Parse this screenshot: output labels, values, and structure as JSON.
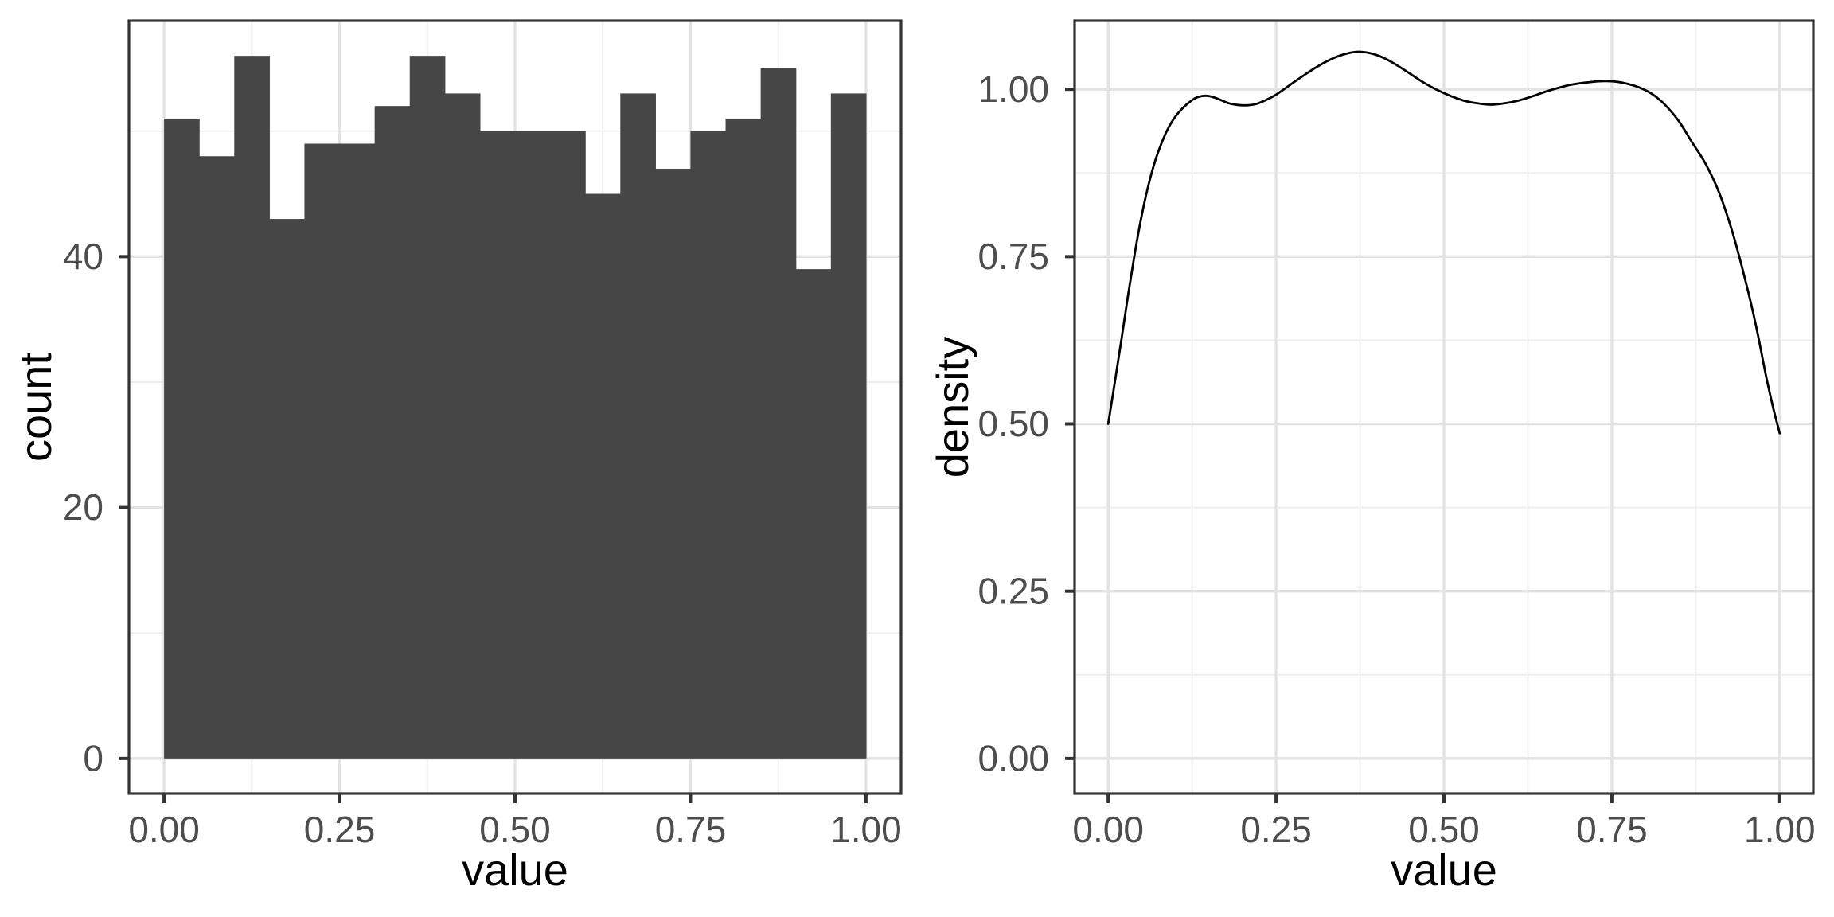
{
  "figure": {
    "background": "#FFFFFF",
    "panel_background": "#FFFFFF",
    "panel_border_color": "#333333",
    "grid_major_color": "#E3E3E3",
    "grid_minor_color": "#EFEFEF",
    "tick_mark_color": "#333333",
    "tick_label_color": "#4D4D4D",
    "axis_title_color": "#000000"
  },
  "chart_data": [
    {
      "type": "bar",
      "subtype": "histogram",
      "title": "",
      "xlabel": "value",
      "ylabel": "count",
      "bar_color": "#464646",
      "bin_start": 0.0,
      "bin_width": 0.05,
      "bin_edges": [
        0.0,
        0.05,
        0.1,
        0.15,
        0.2,
        0.25,
        0.3,
        0.35,
        0.4,
        0.45,
        0.5,
        0.55,
        0.6,
        0.65,
        0.7,
        0.75,
        0.8,
        0.85,
        0.9,
        0.95,
        1.0
      ],
      "values": [
        51,
        48,
        56,
        43,
        49,
        49,
        52,
        56,
        53,
        50,
        50,
        50,
        45,
        53,
        47,
        50,
        51,
        55,
        39,
        53
      ],
      "x_tick_values": [
        0,
        0.25,
        0.5,
        0.75,
        1
      ],
      "x_tick_labels": [
        "0.00",
        "0.25",
        "0.50",
        "0.75",
        "1.00"
      ],
      "x_minor_values": [
        0.125,
        0.375,
        0.625,
        0.875
      ],
      "y_tick_values": [
        0,
        20,
        40
      ],
      "y_tick_labels": [
        "0",
        "20",
        "40"
      ],
      "y_minor_values": [
        10,
        30,
        50
      ],
      "xlim": [
        -0.05,
        1.05
      ],
      "ylim": [
        -2.8,
        58.8
      ],
      "grid": true,
      "legend": "none"
    },
    {
      "type": "line",
      "subtype": "density",
      "title": "",
      "xlabel": "value",
      "ylabel": "density",
      "line_color": "#000000",
      "points": [
        [
          0.0,
          0.5
        ],
        [
          0.01,
          0.563
        ],
        [
          0.02,
          0.628
        ],
        [
          0.03,
          0.695
        ],
        [
          0.04,
          0.757
        ],
        [
          0.05,
          0.812
        ],
        [
          0.06,
          0.857
        ],
        [
          0.07,
          0.893
        ],
        [
          0.08,
          0.921
        ],
        [
          0.09,
          0.943
        ],
        [
          0.1,
          0.959
        ],
        [
          0.11,
          0.971
        ],
        [
          0.12,
          0.98
        ],
        [
          0.13,
          0.987
        ],
        [
          0.14,
          0.99
        ],
        [
          0.15,
          0.99
        ],
        [
          0.16,
          0.987
        ],
        [
          0.17,
          0.983
        ],
        [
          0.18,
          0.979
        ],
        [
          0.19,
          0.977
        ],
        [
          0.205,
          0.976
        ],
        [
          0.22,
          0.978
        ],
        [
          0.235,
          0.984
        ],
        [
          0.25,
          0.992
        ],
        [
          0.27,
          1.006
        ],
        [
          0.29,
          1.02
        ],
        [
          0.31,
          1.033
        ],
        [
          0.33,
          1.044
        ],
        [
          0.35,
          1.052
        ],
        [
          0.37,
          1.056
        ],
        [
          0.39,
          1.054
        ],
        [
          0.41,
          1.047
        ],
        [
          0.43,
          1.036
        ],
        [
          0.45,
          1.023
        ],
        [
          0.47,
          1.01
        ],
        [
          0.49,
          0.999
        ],
        [
          0.51,
          0.99
        ],
        [
          0.53,
          0.983
        ],
        [
          0.55,
          0.979
        ],
        [
          0.57,
          0.977
        ],
        [
          0.59,
          0.979
        ],
        [
          0.61,
          0.983
        ],
        [
          0.63,
          0.989
        ],
        [
          0.65,
          0.996
        ],
        [
          0.67,
          1.002
        ],
        [
          0.69,
          1.007
        ],
        [
          0.71,
          1.01
        ],
        [
          0.73,
          1.012
        ],
        [
          0.75,
          1.012
        ],
        [
          0.77,
          1.009
        ],
        [
          0.79,
          1.003
        ],
        [
          0.81,
          0.993
        ],
        [
          0.83,
          0.976
        ],
        [
          0.85,
          0.952
        ],
        [
          0.87,
          0.92
        ],
        [
          0.89,
          0.888
        ],
        [
          0.91,
          0.845
        ],
        [
          0.93,
          0.785
        ],
        [
          0.95,
          0.71
        ],
        [
          0.965,
          0.645
        ],
        [
          0.98,
          0.57
        ],
        [
          0.99,
          0.525
        ],
        [
          1.0,
          0.486
        ]
      ],
      "x_tick_values": [
        0,
        0.25,
        0.5,
        0.75,
        1
      ],
      "x_tick_labels": [
        "0.00",
        "0.25",
        "0.50",
        "0.75",
        "1.00"
      ],
      "x_minor_values": [
        0.125,
        0.375,
        0.625,
        0.875
      ],
      "y_tick_values": [
        0,
        0.25,
        0.5,
        0.75,
        1
      ],
      "y_tick_labels": [
        "0.00",
        "0.25",
        "0.50",
        "0.75",
        "1.00"
      ],
      "y_minor_values": [
        0.125,
        0.375,
        0.625,
        0.875
      ],
      "xlim": [
        -0.05,
        1.05
      ],
      "ylim": [
        -0.0525,
        1.1025
      ],
      "grid": true,
      "legend": "none"
    }
  ]
}
